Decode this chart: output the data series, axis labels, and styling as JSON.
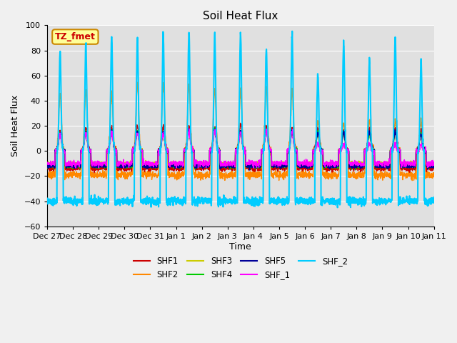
{
  "title": "Soil Heat Flux",
  "xlabel": "Time",
  "ylabel": "Soil Heat Flux",
  "ylim": [
    -60,
    100
  ],
  "background_color": "#e0e0e0",
  "tick_labels": [
    "Dec 27",
    "Dec 28",
    "Dec 29",
    "Dec 30",
    "Dec 31",
    "Jan 1",
    "Jan 2",
    "Jan 3",
    "Jan 4",
    "Jan 5",
    "Jan 6",
    "Jan 7",
    "Jan 8",
    "Jan 9",
    "Jan 10",
    "Jan 11"
  ],
  "series": {
    "SHF1": {
      "color": "#cc0000",
      "lw": 1.0
    },
    "SHF2": {
      "color": "#ff8800",
      "lw": 1.0
    },
    "SHF3": {
      "color": "#cccc00",
      "lw": 1.0
    },
    "SHF4": {
      "color": "#00cc00",
      "lw": 1.0
    },
    "SHF5": {
      "color": "#000099",
      "lw": 1.2
    },
    "SHF_1": {
      "color": "#ff00ff",
      "lw": 1.0
    },
    "SHF_2": {
      "color": "#00ccff",
      "lw": 1.5
    }
  },
  "annotation_text": "TZ_fmet",
  "annotation_color": "#cc0000",
  "annotation_bg": "#ffff99",
  "annotation_border": "#cc8800",
  "yticks": [
    -60,
    -40,
    -20,
    0,
    20,
    40,
    60,
    80,
    100
  ],
  "num_days": 15,
  "peaks_shf1": [
    15,
    18,
    19,
    20,
    20,
    20,
    19,
    21,
    20,
    19,
    18,
    16,
    17,
    18,
    17
  ],
  "peaks_shf2": [
    45,
    47,
    44,
    54,
    53,
    52,
    48,
    47,
    50,
    47,
    23,
    23,
    23,
    24,
    23
  ],
  "peaks_shf3": [
    13,
    14,
    15,
    15,
    14,
    15,
    16,
    15,
    16,
    15,
    14,
    14,
    13,
    14,
    13
  ],
  "peaks_shf4": [
    14,
    15,
    16,
    16,
    15,
    16,
    17,
    16,
    17,
    16,
    15,
    15,
    14,
    15,
    14
  ],
  "peaks_shf5": [
    14,
    15,
    16,
    16,
    15,
    17,
    17,
    16,
    17,
    16,
    15,
    15,
    15,
    15,
    14
  ],
  "peaks_shf_1": [
    13,
    14,
    14,
    15,
    14,
    15,
    15,
    15,
    16,
    15,
    5,
    5,
    5,
    5,
    5
  ],
  "peaks_shf_2": [
    79,
    85,
    92,
    90,
    94,
    95,
    93,
    94,
    81,
    94,
    62,
    86,
    74,
    91,
    73
  ],
  "night_shf1": -14,
  "night_shf2": -19,
  "night_shf3": -10,
  "night_shf4": -12,
  "night_shf5": -12,
  "night_shf_1": -10,
  "night_shf_2": -40
}
